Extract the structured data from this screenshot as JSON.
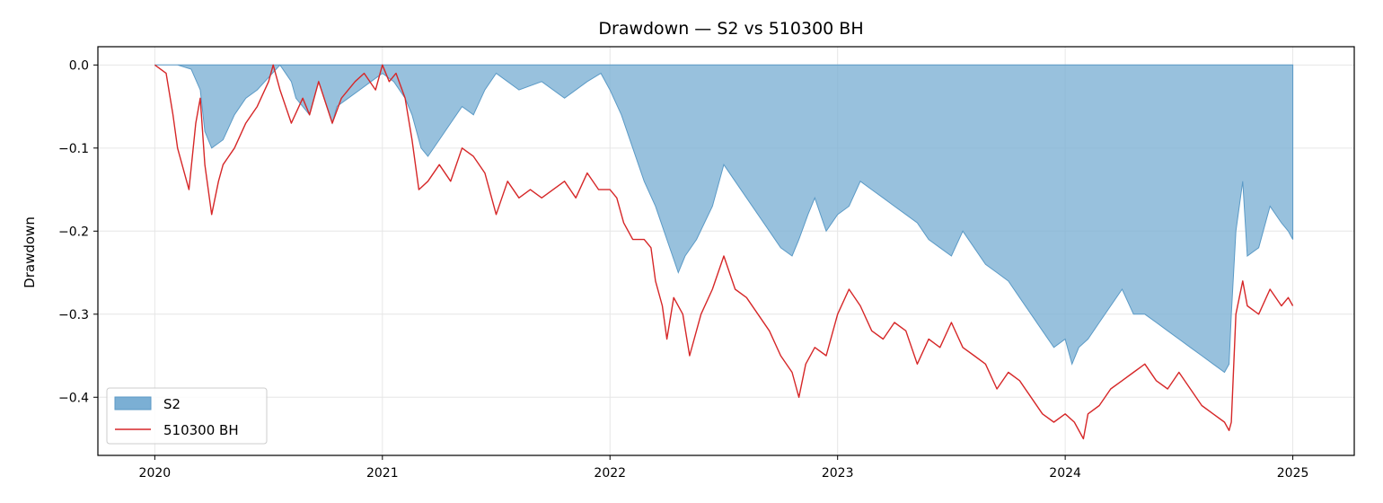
{
  "chart_data": {
    "type": "area",
    "title": "Drawdown — S2 vs 510300 BH",
    "xlabel": "",
    "ylabel": "Drawdown",
    "xlim": [
      2019.75,
      2025.27
    ],
    "ylim": [
      -0.47,
      0.022
    ],
    "x_ticks": [
      2020,
      2021,
      2022,
      2023,
      2024,
      2025
    ],
    "x_tick_labels": [
      "2020",
      "2021",
      "2022",
      "2023",
      "2024",
      "2025"
    ],
    "y_ticks": [
      0.0,
      -0.1,
      -0.2,
      -0.3,
      -0.4
    ],
    "y_tick_labels": [
      "0.0",
      "−0.1",
      "−0.2",
      "−0.3",
      "−0.4"
    ],
    "grid": true,
    "legend_position": "lower-left",
    "series": [
      {
        "name": "S2",
        "kind": "area",
        "color": "#7bafd4",
        "edge_color": "#5b9ac6",
        "x": [
          2020.0,
          2020.1,
          2020.16,
          2020.2,
          2020.22,
          2020.25,
          2020.3,
          2020.35,
          2020.4,
          2020.45,
          2020.5,
          2020.55,
          2020.6,
          2020.62,
          2020.68,
          2020.72,
          2020.78,
          2020.8,
          2020.85,
          2020.9,
          2020.95,
          2021.0,
          2021.05,
          2021.1,
          2021.13,
          2021.17,
          2021.2,
          2021.25,
          2021.3,
          2021.35,
          2021.4,
          2021.45,
          2021.5,
          2021.55,
          2021.6,
          2021.7,
          2021.8,
          2021.9,
          2021.96,
          2022.0,
          2022.05,
          2022.1,
          2022.15,
          2022.2,
          2022.25,
          2022.3,
          2022.33,
          2022.38,
          2022.45,
          2022.5,
          2022.55,
          2022.6,
          2022.65,
          2022.7,
          2022.75,
          2022.8,
          2022.83,
          2022.87,
          2022.9,
          2022.95,
          2023.0,
          2023.05,
          2023.1,
          2023.15,
          2023.2,
          2023.25,
          2023.3,
          2023.35,
          2023.4,
          2023.45,
          2023.5,
          2023.55,
          2023.6,
          2023.65,
          2023.7,
          2023.75,
          2023.8,
          2023.85,
          2023.9,
          2023.95,
          2024.0,
          2024.03,
          2024.06,
          2024.1,
          2024.15,
          2024.2,
          2024.25,
          2024.3,
          2024.35,
          2024.4,
          2024.45,
          2024.5,
          2024.55,
          2024.6,
          2024.65,
          2024.7,
          2024.72,
          2024.73,
          2024.75,
          2024.78,
          2024.8,
          2024.85,
          2024.9,
          2024.95,
          2024.98,
          2025.0
        ],
        "values": [
          0.0,
          0.0,
          -0.005,
          -0.03,
          -0.08,
          -0.1,
          -0.09,
          -0.06,
          -0.04,
          -0.03,
          -0.015,
          0.0,
          -0.02,
          -0.04,
          -0.06,
          -0.02,
          -0.07,
          -0.05,
          -0.04,
          -0.03,
          -0.02,
          -0.01,
          -0.02,
          -0.04,
          -0.06,
          -0.1,
          -0.11,
          -0.09,
          -0.07,
          -0.05,
          -0.06,
          -0.03,
          -0.01,
          -0.02,
          -0.03,
          -0.02,
          -0.04,
          -0.02,
          -0.01,
          -0.03,
          -0.06,
          -0.1,
          -0.14,
          -0.17,
          -0.21,
          -0.25,
          -0.23,
          -0.21,
          -0.17,
          -0.12,
          -0.14,
          -0.16,
          -0.18,
          -0.2,
          -0.22,
          -0.23,
          -0.21,
          -0.18,
          -0.16,
          -0.2,
          -0.18,
          -0.17,
          -0.14,
          -0.15,
          -0.16,
          -0.17,
          -0.18,
          -0.19,
          -0.21,
          -0.22,
          -0.23,
          -0.2,
          -0.22,
          -0.24,
          -0.25,
          -0.26,
          -0.28,
          -0.3,
          -0.32,
          -0.34,
          -0.33,
          -0.36,
          -0.34,
          -0.33,
          -0.31,
          -0.29,
          -0.27,
          -0.3,
          -0.3,
          -0.31,
          -0.32,
          -0.33,
          -0.34,
          -0.35,
          -0.36,
          -0.37,
          -0.36,
          -0.3,
          -0.2,
          -0.14,
          -0.23,
          -0.22,
          -0.17,
          -0.19,
          -0.2,
          -0.21
        ]
      },
      {
        "name": "510300 BH",
        "kind": "line",
        "color": "#d62728",
        "x": [
          2020.0,
          2020.05,
          2020.08,
          2020.1,
          2020.15,
          2020.18,
          2020.2,
          2020.22,
          2020.25,
          2020.28,
          2020.3,
          2020.35,
          2020.4,
          2020.45,
          2020.5,
          2020.52,
          2020.55,
          2020.6,
          2020.65,
          2020.68,
          2020.72,
          2020.78,
          2020.82,
          2020.88,
          2020.92,
          2020.97,
          2021.0,
          2021.03,
          2021.06,
          2021.1,
          2021.13,
          2021.16,
          2021.2,
          2021.25,
          2021.3,
          2021.35,
          2021.4,
          2021.45,
          2021.5,
          2021.55,
          2021.6,
          2021.65,
          2021.7,
          2021.75,
          2021.8,
          2021.85,
          2021.9,
          2021.95,
          2022.0,
          2022.03,
          2022.06,
          2022.1,
          2022.15,
          2022.18,
          2022.2,
          2022.23,
          2022.25,
          2022.28,
          2022.32,
          2022.35,
          2022.4,
          2022.45,
          2022.5,
          2022.55,
          2022.6,
          2022.65,
          2022.7,
          2022.75,
          2022.8,
          2022.83,
          2022.86,
          2022.9,
          2022.95,
          2023.0,
          2023.05,
          2023.1,
          2023.15,
          2023.2,
          2023.25,
          2023.3,
          2023.35,
          2023.4,
          2023.45,
          2023.5,
          2023.55,
          2023.6,
          2023.65,
          2023.7,
          2023.75,
          2023.8,
          2023.85,
          2023.9,
          2023.95,
          2024.0,
          2024.04,
          2024.08,
          2024.1,
          2024.15,
          2024.2,
          2024.25,
          2024.3,
          2024.35,
          2024.4,
          2024.45,
          2024.5,
          2024.55,
          2024.6,
          2024.65,
          2024.7,
          2024.72,
          2024.73,
          2024.75,
          2024.78,
          2024.8,
          2024.85,
          2024.9,
          2024.95,
          2024.98,
          2025.0
        ],
        "values": [
          0.0,
          -0.01,
          -0.06,
          -0.1,
          -0.15,
          -0.07,
          -0.04,
          -0.12,
          -0.18,
          -0.14,
          -0.12,
          -0.1,
          -0.07,
          -0.05,
          -0.02,
          0.0,
          -0.03,
          -0.07,
          -0.04,
          -0.06,
          -0.02,
          -0.07,
          -0.04,
          -0.02,
          -0.01,
          -0.03,
          0.0,
          -0.02,
          -0.01,
          -0.04,
          -0.09,
          -0.15,
          -0.14,
          -0.12,
          -0.14,
          -0.1,
          -0.11,
          -0.13,
          -0.18,
          -0.14,
          -0.16,
          -0.15,
          -0.16,
          -0.15,
          -0.14,
          -0.16,
          -0.13,
          -0.15,
          -0.15,
          -0.16,
          -0.19,
          -0.21,
          -0.21,
          -0.22,
          -0.26,
          -0.29,
          -0.33,
          -0.28,
          -0.3,
          -0.35,
          -0.3,
          -0.27,
          -0.23,
          -0.27,
          -0.28,
          -0.3,
          -0.32,
          -0.35,
          -0.37,
          -0.4,
          -0.36,
          -0.34,
          -0.35,
          -0.3,
          -0.27,
          -0.29,
          -0.32,
          -0.33,
          -0.31,
          -0.32,
          -0.36,
          -0.33,
          -0.34,
          -0.31,
          -0.34,
          -0.35,
          -0.36,
          -0.39,
          -0.37,
          -0.38,
          -0.4,
          -0.42,
          -0.43,
          -0.42,
          -0.43,
          -0.45,
          -0.42,
          -0.41,
          -0.39,
          -0.38,
          -0.37,
          -0.36,
          -0.38,
          -0.39,
          -0.37,
          -0.39,
          -0.41,
          -0.42,
          -0.43,
          -0.44,
          -0.43,
          -0.3,
          -0.26,
          -0.29,
          -0.3,
          -0.27,
          -0.29,
          -0.28,
          -0.29
        ]
      }
    ]
  }
}
